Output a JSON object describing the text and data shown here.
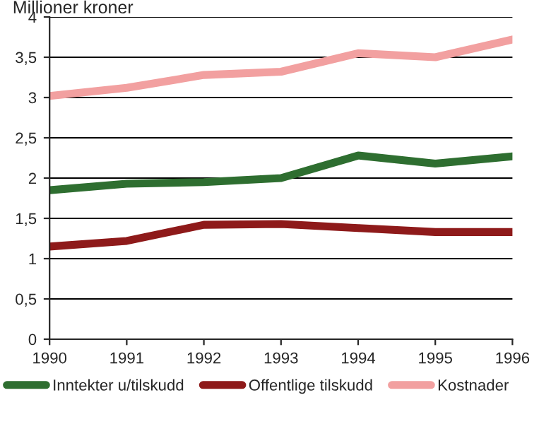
{
  "chart_data": {
    "type": "line",
    "ylabel": "Millioner kroner",
    "x": [
      1990,
      1991,
      1992,
      1993,
      1994,
      1995,
      1996
    ],
    "series": [
      {
        "name": "Inntekter u/tilskudd",
        "color": "#2e6e30",
        "values": [
          1.85,
          1.93,
          1.95,
          2.0,
          2.28,
          2.18,
          2.27
        ]
      },
      {
        "name": "Offentlige tilskudd",
        "color": "#8e1a1a",
        "values": [
          1.15,
          1.22,
          1.42,
          1.43,
          1.38,
          1.33,
          1.33
        ]
      },
      {
        "name": "Kostnader",
        "color": "#f2a0a0",
        "values": [
          3.02,
          3.12,
          3.28,
          3.32,
          3.55,
          3.5,
          3.72
        ]
      }
    ],
    "xlim": [
      1990,
      1996
    ],
    "xticks": [
      1990,
      1991,
      1992,
      1993,
      1994,
      1995,
      1996
    ],
    "ylim": [
      0,
      4
    ],
    "yticks": [
      0,
      {
        "value": 0.5,
        "label": "0,5"
      },
      1,
      {
        "value": 1.5,
        "label": "1,5"
      },
      2,
      {
        "value": 2.5,
        "label": "2,5"
      },
      3,
      {
        "value": 3.5,
        "label": "3,5"
      },
      4
    ],
    "grid": "y",
    "legend": "bottom",
    "marker": "none",
    "line_style": "solid"
  }
}
